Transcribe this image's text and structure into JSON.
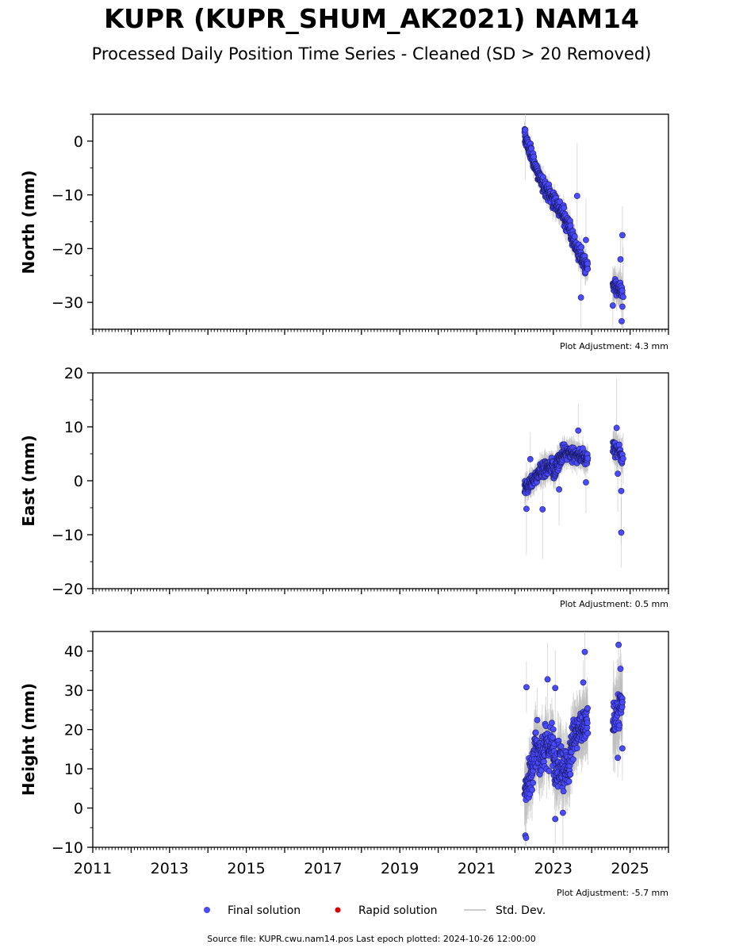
{
  "title": "KUPR (KUPR_SHUM_AK2021) NAM14",
  "subtitle": "Processed Daily Position Time Series - Cleaned (SD > 20 Removed)",
  "source_text": "Source file: KUPR.cwu.nam14.pos  Last epoch plotted: 2024-10-26 12:00:00",
  "legend": [
    {
      "label": "Final solution",
      "color": "#4444ff",
      "marker": "circle"
    },
    {
      "label": "Rapid solution",
      "color": "#dd0000",
      "marker": "circle"
    },
    {
      "label": "Std. Dev.",
      "color": "#cccccc",
      "marker": "line"
    }
  ],
  "colors": {
    "final": "#4a4aff",
    "rapid": "#dd0000",
    "stddev": "#bbbbbb",
    "axis": "#000000"
  },
  "chart_data": [
    {
      "type": "scatter",
      "panel": "north",
      "ylabel": "North (mm)",
      "xlim": [
        2011.0,
        2026.0
      ],
      "ylim": [
        -35,
        5
      ],
      "yticks": [
        {
          "v": 0,
          "label": "0"
        },
        {
          "v": -10,
          "label": "−10"
        },
        {
          "v": -20,
          "label": "−20"
        },
        {
          "v": -30,
          "label": "−30"
        }
      ],
      "adjustment_label": "Plot Adjustment: 4.3 mm",
      "series": [
        {
          "name": "Final solution",
          "segments": [
            {
              "t0": 2022.25,
              "t1": 2022.65,
              "y0": 1.0,
              "y1": -7.0,
              "noise": 1.3,
              "n": 95,
              "sd": 1.6
            },
            {
              "t0": 2022.65,
              "t1": 2023.05,
              "y0": -7.0,
              "y1": -11.5,
              "noise": 1.5,
              "n": 95,
              "sd": 1.6
            },
            {
              "t0": 2023.05,
              "t1": 2023.45,
              "y0": -11.5,
              "y1": -16.0,
              "noise": 1.6,
              "n": 95,
              "sd": 1.7
            },
            {
              "t0": 2023.45,
              "t1": 2023.9,
              "y0": -17.5,
              "y1": -24.0,
              "noise": 1.5,
              "n": 110,
              "sd": 1.8
            },
            {
              "t0": 2024.55,
              "t1": 2024.8,
              "y0": -27.0,
              "y1": -28.0,
              "noise": 1.4,
              "n": 55,
              "sd": 2.4
            }
          ],
          "outliers": [
            {
              "t": 2022.27,
              "y": 2.1
            },
            {
              "t": 2023.72,
              "y": -29.1
            },
            {
              "t": 2023.62,
              "y": -10.2
            },
            {
              "t": 2024.75,
              "y": -22.0
            },
            {
              "t": 2024.8,
              "y": -17.5
            },
            {
              "t": 2024.78,
              "y": -33.5
            },
            {
              "t": 2024.8,
              "y": -30.8
            },
            {
              "t": 2024.82,
              "y": -29.0
            },
            {
              "t": 2024.55,
              "y": -30.6
            },
            {
              "t": 2023.85,
              "y": -18.4
            }
          ]
        }
      ]
    },
    {
      "type": "scatter",
      "panel": "east",
      "ylabel": "East (mm)",
      "xlim": [
        2011.0,
        2026.0
      ],
      "ylim": [
        -20,
        20
      ],
      "yticks": [
        {
          "v": 20,
          "label": "20"
        },
        {
          "v": 10,
          "label": "10"
        },
        {
          "v": 0,
          "label": "0"
        },
        {
          "v": -10,
          "label": "−10"
        },
        {
          "v": -20,
          "label": "−20"
        }
      ],
      "adjustment_label": "Plot Adjustment: 0.5 mm",
      "series": [
        {
          "name": "Final solution",
          "segments": [
            {
              "t0": 2022.25,
              "t1": 2022.6,
              "y0": -1.5,
              "y1": 1.0,
              "noise": 1.2,
              "n": 85,
              "sd": 1.7
            },
            {
              "t0": 2022.6,
              "t1": 2023.0,
              "y0": 1.5,
              "y1": 3.0,
              "noise": 1.4,
              "n": 95,
              "sd": 1.8
            },
            {
              "t0": 2023.0,
              "t1": 2023.3,
              "y0": 1.5,
              "y1": 5.5,
              "noise": 1.4,
              "n": 80,
              "sd": 1.8
            },
            {
              "t0": 2023.3,
              "t1": 2023.9,
              "y0": 5.5,
              "y1": 4.0,
              "noise": 1.3,
              "n": 130,
              "sd": 1.8
            },
            {
              "t0": 2024.55,
              "t1": 2024.8,
              "y0": 6.5,
              "y1": 4.5,
              "noise": 1.3,
              "n": 50,
              "sd": 2.4
            }
          ],
          "outliers": [
            {
              "t": 2022.3,
              "y": -5.2
            },
            {
              "t": 2022.72,
              "y": -5.3
            },
            {
              "t": 2023.15,
              "y": -1.6
            },
            {
              "t": 2023.85,
              "y": -0.3
            },
            {
              "t": 2024.77,
              "y": -9.6
            },
            {
              "t": 2024.77,
              "y": -1.9
            },
            {
              "t": 2024.68,
              "y": 1.3
            },
            {
              "t": 2024.82,
              "y": 4.1
            },
            {
              "t": 2024.65,
              "y": 9.8
            },
            {
              "t": 2022.4,
              "y": 4.0
            },
            {
              "t": 2023.65,
              "y": 9.3
            }
          ]
        }
      ]
    },
    {
      "type": "scatter",
      "panel": "height",
      "ylabel": "Height (mm)",
      "xlim": [
        2011.0,
        2026.0
      ],
      "ylim": [
        -10,
        45
      ],
      "yticks": [
        {
          "v": 40,
          "label": "40"
        },
        {
          "v": 30,
          "label": "30"
        },
        {
          "v": 20,
          "label": "20"
        },
        {
          "v": 10,
          "label": "10"
        },
        {
          "v": 0,
          "label": "0"
        },
        {
          "v": -10,
          "label": "−10"
        }
      ],
      "xticks": [
        {
          "v": 2011,
          "label": "2011"
        },
        {
          "v": 2013,
          "label": "2013"
        },
        {
          "v": 2015,
          "label": "2015"
        },
        {
          "v": 2017,
          "label": "2017"
        },
        {
          "v": 2019,
          "label": "2019"
        },
        {
          "v": 2021,
          "label": "2021"
        },
        {
          "v": 2023,
          "label": "2023"
        },
        {
          "v": 2025,
          "label": "2025"
        }
      ],
      "adjustment_label": "Plot Adjustment: -5.7 mm",
      "series": [
        {
          "name": "Final solution",
          "segments": [
            {
              "t0": 2022.25,
              "t1": 2022.5,
              "y0": 3.0,
              "y1": 12.0,
              "noise": 5.0,
              "n": 60,
              "sd": 6.0
            },
            {
              "t0": 2022.5,
              "t1": 2023.0,
              "y0": 14.0,
              "y1": 16.0,
              "noise": 5.5,
              "n": 120,
              "sd": 6.0
            },
            {
              "t0": 2023.0,
              "t1": 2023.45,
              "y0": 12.0,
              "y1": 10.0,
              "noise": 5.5,
              "n": 110,
              "sd": 6.0
            },
            {
              "t0": 2023.45,
              "t1": 2023.9,
              "y0": 17.0,
              "y1": 22.0,
              "noise": 4.5,
              "n": 110,
              "sd": 6.0
            },
            {
              "t0": 2024.55,
              "t1": 2024.8,
              "y0": 22.0,
              "y1": 27.0,
              "noise": 4.5,
              "n": 50,
              "sd": 8.0
            }
          ],
          "outliers": [
            {
              "t": 2022.27,
              "y": -7.0
            },
            {
              "t": 2022.29,
              "y": -7.6
            },
            {
              "t": 2022.3,
              "y": 30.8
            },
            {
              "t": 2023.82,
              "y": 39.8
            },
            {
              "t": 2024.7,
              "y": 41.6
            },
            {
              "t": 2024.75,
              "y": 35.5
            },
            {
              "t": 2024.8,
              "y": 27.0
            },
            {
              "t": 2024.8,
              "y": 15.2
            },
            {
              "t": 2024.68,
              "y": 12.8
            },
            {
              "t": 2023.05,
              "y": -2.8
            },
            {
              "t": 2023.05,
              "y": 30.6
            },
            {
              "t": 2022.85,
              "y": 32.8
            },
            {
              "t": 2023.25,
              "y": -1.2
            },
            {
              "t": 2023.78,
              "y": 32.0
            }
          ]
        }
      ]
    }
  ]
}
